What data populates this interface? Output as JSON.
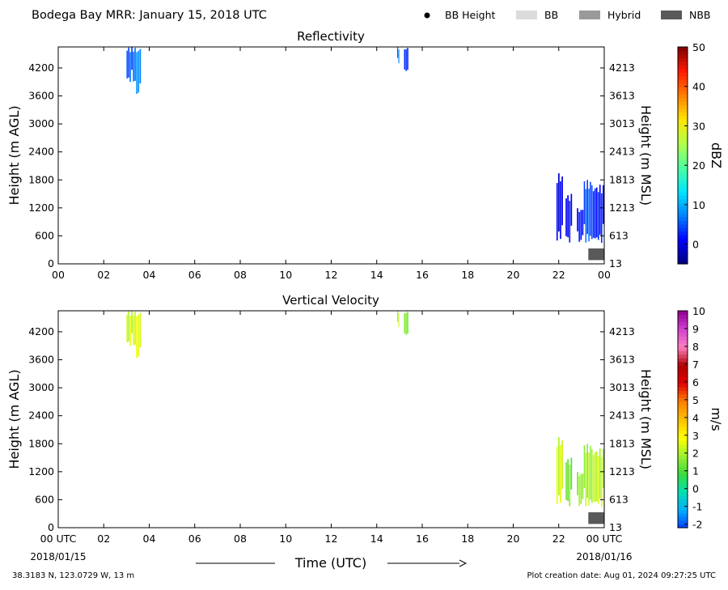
{
  "header": {
    "title": "Bodega Bay MRR:  January 15, 2018 UTC",
    "legend": [
      {
        "label": "BB Height",
        "kind": "dot",
        "color": "#000000"
      },
      {
        "label": "BB",
        "kind": "box",
        "color": "#dcdcdc"
      },
      {
        "label": "Hybrid",
        "kind": "box",
        "color": "#9a9a9a"
      },
      {
        "label": "NBB",
        "kind": "box",
        "color": "#595959"
      }
    ]
  },
  "footer": {
    "location": "38.3183 N, 123.0729 W, 13 m",
    "created": "Plot creation date: Aug 01, 2024 09:27:25 UTC",
    "xlabel": "Time (UTC)",
    "start_date": "2018/01/16",
    "start_date_left": "2018/01/15"
  },
  "chart_data": [
    {
      "type": "heatmap",
      "title": "Reflectivity",
      "ylabel_left": "Height (m AGL)",
      "ylabel_right": "Height (m MSL)",
      "x_ticks": [
        "00",
        "02",
        "04",
        "06",
        "08",
        "10",
        "12",
        "14",
        "16",
        "18",
        "20",
        "22",
        "00"
      ],
      "xlim_hours": [
        0,
        24
      ],
      "y_ticks_left": [
        0,
        600,
        1200,
        1800,
        2400,
        3000,
        3600,
        4200
      ],
      "y_ticks_right": [
        13,
        613,
        1213,
        1813,
        2413,
        3013,
        3613,
        4213
      ],
      "ylim": [
        0,
        4650
      ],
      "colorbar": {
        "label": "dBZ",
        "range": [
          -5,
          50
        ],
        "ticks": [
          0,
          10,
          20,
          30,
          40,
          50
        ],
        "stops": [
          "#00007f",
          "#0000ff",
          "#0080ff",
          "#00e5ff",
          "#4cff9f",
          "#b2ff4c",
          "#ffe500",
          "#ff8000",
          "#ff1a00",
          "#7f0000"
        ]
      },
      "echoes": [
        {
          "t0": 3.0,
          "t1": 3.35,
          "h0": 3900,
          "h1": 4650,
          "value": 5
        },
        {
          "t0": 3.35,
          "t1": 3.65,
          "h0": 3600,
          "h1": 4650,
          "value": 8
        },
        {
          "t0": 14.9,
          "t1": 15.0,
          "h0": 4300,
          "h1": 4650,
          "value": 6
        },
        {
          "t0": 15.2,
          "t1": 15.4,
          "h0": 4100,
          "h1": 4650,
          "value": 3
        },
        {
          "t0": 21.9,
          "t1": 22.2,
          "h0": 500,
          "h1": 1950,
          "value": 0
        },
        {
          "t0": 22.3,
          "t1": 22.6,
          "h0": 450,
          "h1": 1500,
          "value": 1
        },
        {
          "t0": 22.8,
          "t1": 23.1,
          "h0": 450,
          "h1": 1200,
          "value": 2
        },
        {
          "t0": 23.1,
          "t1": 23.5,
          "h0": 450,
          "h1": 1800,
          "value": 5
        },
        {
          "t0": 23.5,
          "t1": 24.0,
          "h0": 450,
          "h1": 1700,
          "value": 2
        }
      ],
      "bright_band": [
        {
          "t0": 23.3,
          "t1": 24.0,
          "h0": 80,
          "h1": 330,
          "class": "NBB"
        }
      ]
    },
    {
      "type": "heatmap",
      "title": "Vertical Velocity",
      "ylabel_left": "Height (m AGL)",
      "ylabel_right": "Height (m MSL)",
      "x_ticks": [
        "00 UTC",
        "02",
        "04",
        "06",
        "08",
        "10",
        "12",
        "14",
        "16",
        "18",
        "20",
        "22",
        "00 UTC"
      ],
      "xlim_hours": [
        0,
        24
      ],
      "y_ticks_left": [
        0,
        600,
        1200,
        1800,
        2400,
        3000,
        3600,
        4200
      ],
      "y_ticks_right": [
        13,
        613,
        1213,
        1813,
        2413,
        3013,
        3613,
        4213
      ],
      "ylim": [
        0,
        4650
      ],
      "colorbar": {
        "label": "m/s",
        "range": [
          -2.2,
          10
        ],
        "ticks": [
          -2,
          -1,
          0,
          1,
          2,
          3,
          4,
          5,
          6,
          7,
          8,
          9,
          10
        ],
        "stops": [
          "#0040ff",
          "#00b0ff",
          "#00e0b0",
          "#3cdc3c",
          "#a0f030",
          "#ffff00",
          "#ffc000",
          "#ff8000",
          "#e00000",
          "#b00000",
          "#ff80c0",
          "#d040d0",
          "#900090"
        ]
      },
      "echoes": [
        {
          "t0": 3.0,
          "t1": 3.35,
          "h0": 3900,
          "h1": 4650,
          "value": 2.3
        },
        {
          "t0": 3.35,
          "t1": 3.65,
          "h0": 3600,
          "h1": 4650,
          "value": 2.6
        },
        {
          "t0": 14.9,
          "t1": 15.0,
          "h0": 4300,
          "h1": 4650,
          "value": 2.0
        },
        {
          "t0": 15.2,
          "t1": 15.4,
          "h0": 4100,
          "h1": 4650,
          "value": 1.5
        },
        {
          "t0": 21.9,
          "t1": 22.2,
          "h0": 500,
          "h1": 1950,
          "value": 2.4
        },
        {
          "t0": 22.3,
          "t1": 22.6,
          "h0": 450,
          "h1": 1500,
          "value": 1.4
        },
        {
          "t0": 22.8,
          "t1": 23.1,
          "h0": 450,
          "h1": 1200,
          "value": 1.8
        },
        {
          "t0": 23.1,
          "t1": 23.5,
          "h0": 450,
          "h1": 1800,
          "value": 1.9
        },
        {
          "t0": 23.5,
          "t1": 24.0,
          "h0": 450,
          "h1": 1700,
          "value": 2.2
        }
      ],
      "bright_band": [
        {
          "t0": 23.3,
          "t1": 24.0,
          "h0": 80,
          "h1": 330,
          "class": "NBB"
        }
      ]
    }
  ]
}
